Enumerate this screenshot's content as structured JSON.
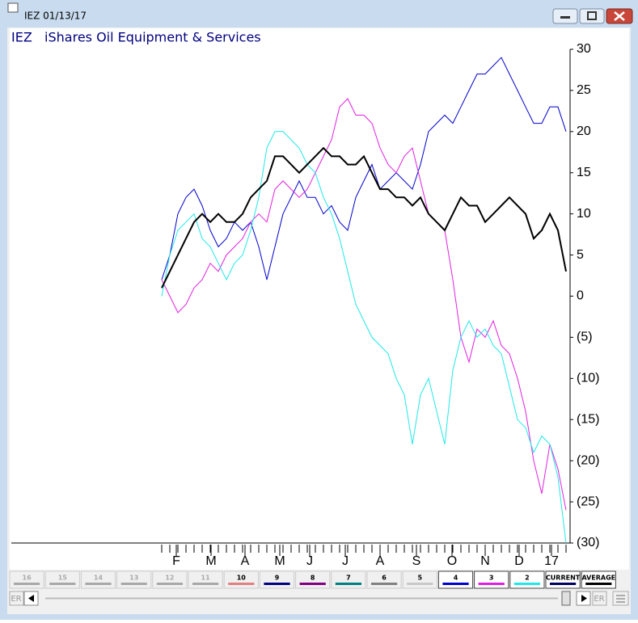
{
  "window_title": "IEZ 01/13/17",
  "chart_data": {
    "type": "line",
    "title": "IEZ   iShares Oil Equipment & Services",
    "x": [
      0,
      1,
      2,
      3,
      4,
      5,
      6,
      7,
      8,
      9,
      10,
      11,
      12,
      13,
      14,
      15,
      16,
      17,
      18,
      19,
      20,
      21,
      22,
      23,
      24,
      25,
      26,
      27,
      28,
      29,
      30,
      31,
      32,
      33,
      34,
      35,
      36,
      37,
      38,
      39,
      40,
      41,
      42,
      43,
      44,
      45,
      46,
      47,
      48,
      49,
      50
    ],
    "xlim": [
      0,
      50
    ],
    "xticks": [
      {
        "value": 1.8,
        "label": "F"
      },
      {
        "value": 6.1,
        "label": "M"
      },
      {
        "value": 10.3,
        "label": "A"
      },
      {
        "value": 14.6,
        "label": "M"
      },
      {
        "value": 18.3,
        "label": "J"
      },
      {
        "value": 22.7,
        "label": "J"
      },
      {
        "value": 27,
        "label": "A"
      },
      {
        "value": 31.5,
        "label": "S"
      },
      {
        "value": 35.9,
        "label": "O"
      },
      {
        "value": 40,
        "label": "N"
      },
      {
        "value": 44.2,
        "label": "D"
      },
      {
        "value": 48.2,
        "label": "17"
      }
    ],
    "ylim": [
      -30,
      30
    ],
    "yticks": [
      30,
      25,
      20,
      15,
      10,
      5,
      0,
      {
        "value": -5,
        "label": "(5)"
      },
      {
        "value": -10,
        "label": "(10)"
      },
      {
        "value": -15,
        "label": "(15)"
      },
      {
        "value": -20,
        "label": "(20)"
      },
      {
        "value": -25,
        "label": "(25)"
      },
      {
        "value": -30,
        "label": "(30)"
      }
    ],
    "series": [
      {
        "name": "4",
        "color": "#0000cc",
        "values": [
          2,
          5,
          10,
          12,
          13,
          11,
          8,
          6,
          7,
          9,
          8,
          9,
          6,
          2,
          6,
          10,
          12,
          14,
          12,
          12,
          10,
          11,
          9,
          8,
          12,
          14,
          16,
          13,
          14,
          15,
          14,
          13,
          16,
          20,
          21,
          22,
          21,
          23,
          25,
          27,
          27,
          28,
          29,
          27,
          25,
          23,
          21,
          21,
          23,
          23,
          20
        ]
      },
      {
        "name": "3",
        "color": "#e020e0",
        "values": [
          2,
          0,
          -2,
          -1,
          1,
          2,
          4,
          3,
          5,
          6,
          7,
          9,
          10,
          9,
          13,
          14,
          13,
          12,
          13,
          15,
          17,
          19,
          23,
          24,
          22,
          22,
          21,
          18,
          16,
          15,
          17,
          18,
          14,
          10,
          9,
          8,
          2,
          -5,
          -8,
          -4,
          -5,
          -3,
          -6,
          -7,
          -10,
          -14,
          -20,
          -24,
          -18,
          -21,
          -26
        ]
      },
      {
        "name": "2",
        "color": "#20e8e8",
        "values": [
          0,
          5,
          8,
          9,
          10,
          7,
          6,
          4,
          2,
          4,
          5,
          8,
          12,
          18,
          20,
          20,
          19,
          18,
          16,
          15,
          12,
          10,
          7,
          3,
          -1,
          -3,
          -5,
          -6,
          -7,
          -10,
          -12,
          -18,
          -12,
          -10,
          -14,
          -18,
          -9,
          -5,
          -3,
          -5,
          -4,
          -6,
          -7,
          -11,
          -15,
          -16,
          -19,
          -17,
          -18,
          -22,
          -30
        ]
      },
      {
        "name": "AVERAGE",
        "color": "#000000",
        "values": [
          1,
          3,
          5,
          7,
          9,
          10,
          9,
          10,
          9,
          9,
          10,
          12,
          13,
          14,
          17,
          17,
          16,
          15,
          16,
          17,
          18,
          17,
          17,
          16,
          16,
          17,
          15,
          13,
          13,
          12,
          12,
          11,
          12,
          10,
          9,
          8,
          10,
          12,
          11,
          11,
          9,
          10,
          11,
          12,
          11,
          10,
          7,
          8,
          10,
          8,
          3
        ]
      }
    ]
  },
  "tabs": [
    {
      "label": "16",
      "color": "#a8a8a8"
    },
    {
      "label": "15",
      "color": "#a8a8a8"
    },
    {
      "label": "14",
      "color": "#a8a8a8"
    },
    {
      "label": "13",
      "color": "#a8a8a8"
    },
    {
      "label": "12",
      "color": "#a8a8a8"
    },
    {
      "label": "11",
      "color": "#a8a8a8"
    },
    {
      "label": "10",
      "color": "#e08080"
    },
    {
      "label": "9",
      "color": "#000080"
    },
    {
      "label": "8",
      "color": "#800080"
    },
    {
      "label": "7",
      "color": "#008080"
    },
    {
      "label": "6",
      "color": "#808080"
    },
    {
      "label": "5",
      "color": "#c8c8c8"
    }
  ],
  "current_tab": {
    "label": "CURRENT",
    "color": "#000060"
  },
  "scroll_label": "ER"
}
